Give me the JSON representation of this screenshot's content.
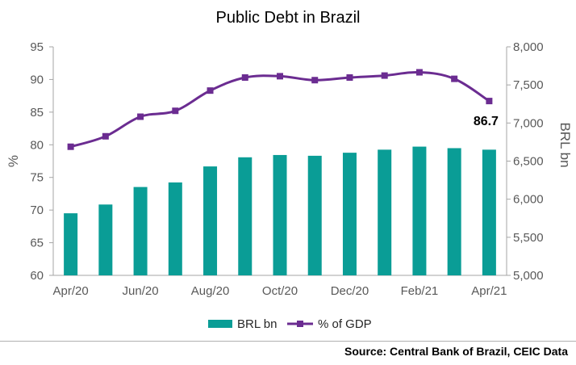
{
  "chart_data": {
    "type": "bar+line",
    "title": "Public Debt in Brazil",
    "categories": [
      "Apr/20",
      "May/20",
      "Jun/20",
      "Jul/20",
      "Aug/20",
      "Sep/20",
      "Oct/20",
      "Nov/20",
      "Dec/20",
      "Jan/21",
      "Feb/21",
      "Mar/21",
      "Apr/21"
    ],
    "x_tick_labels": [
      "Apr/20",
      "Jun/20",
      "Aug/20",
      "Oct/20",
      "Dec/20",
      "Feb/21",
      "Apr/21"
    ],
    "series": [
      {
        "name": "BRL bn",
        "type": "bar",
        "axis": "right",
        "color": "#0a9d96",
        "values": [
          5815,
          5930,
          6160,
          6220,
          6430,
          6550,
          6580,
          6570,
          6610,
          6650,
          6690,
          6670,
          6650
        ]
      },
      {
        "name": "% of GDP",
        "type": "line",
        "axis": "left",
        "color": "#6b2c91",
        "values": [
          79.7,
          81.3,
          84.3,
          85.2,
          88.3,
          90.3,
          90.5,
          89.9,
          90.3,
          90.6,
          91.1,
          90.1,
          86.7
        ]
      }
    ],
    "ylabel_left": "%",
    "ylabel_right": "BRL bn",
    "ylim_left": [
      60,
      95
    ],
    "yticks_left": [
      "95",
      "90",
      "85",
      "80",
      "75",
      "70",
      "65",
      "60"
    ],
    "ylim_right": [
      5000,
      8000
    ],
    "yticks_right": [
      "8,000",
      "7,500",
      "7,000",
      "6,500",
      "6,000",
      "5,500",
      "5,000"
    ],
    "annotation": {
      "text": "86.7",
      "series": "% of GDP",
      "index": 12
    },
    "legend_position": "bottom",
    "grid": false
  },
  "source": "Source: Central Bank of Brazil, CEIC Data"
}
